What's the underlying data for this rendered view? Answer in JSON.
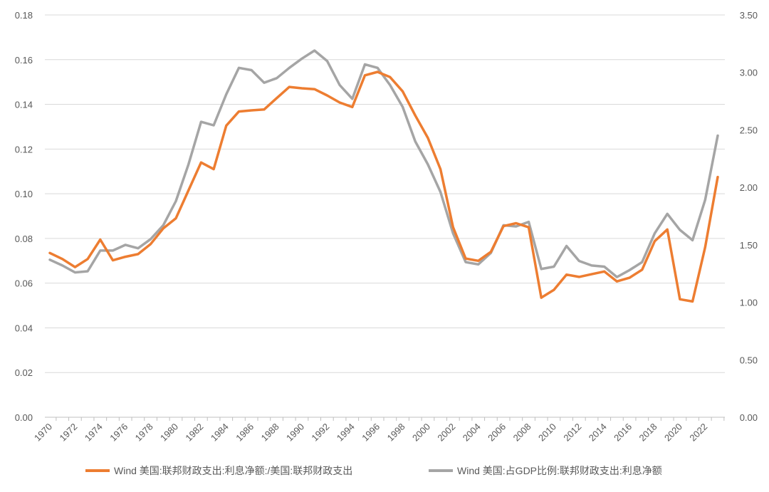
{
  "chart_data": {
    "type": "line",
    "x": [
      1970,
      1971,
      1972,
      1973,
      1974,
      1975,
      1976,
      1977,
      1978,
      1979,
      1980,
      1981,
      1982,
      1983,
      1984,
      1985,
      1986,
      1987,
      1988,
      1989,
      1990,
      1991,
      1992,
      1993,
      1994,
      1995,
      1996,
      1997,
      1998,
      1999,
      2000,
      2001,
      2002,
      2003,
      2004,
      2005,
      2006,
      2007,
      2008,
      2009,
      2010,
      2011,
      2012,
      2013,
      2014,
      2015,
      2016,
      2017,
      2018,
      2019,
      2020,
      2021,
      2022,
      2023
    ],
    "x_tick_labels": [
      "1970",
      "1972",
      "1974",
      "1976",
      "1978",
      "1980",
      "1982",
      "1984",
      "1986",
      "1988",
      "1990",
      "1992",
      "1994",
      "1996",
      "1998",
      "2000",
      "2002",
      "2004",
      "2006",
      "2008",
      "2010",
      "2012",
      "2014",
      "2016",
      "2018",
      "2020",
      "2022"
    ],
    "left_axis": {
      "ylim": [
        0,
        0.18
      ],
      "ticks": [
        "0.00",
        "0.02",
        "0.04",
        "0.06",
        "0.08",
        "0.10",
        "0.12",
        "0.14",
        "0.16",
        "0.18"
      ]
    },
    "right_axis": {
      "ylim": [
        0,
        3.5
      ],
      "ticks": [
        "0.00",
        "0.50",
        "1.00",
        "1.50",
        "2.00",
        "2.50",
        "3.00",
        "3.50"
      ]
    },
    "grid": true,
    "legend_position": "bottom",
    "series": [
      {
        "name": "Wind 美国:联邦财政支出:利息净额:/美国:联邦财政支出",
        "axis": "left",
        "color": "#ED7D31",
        "values": [
          0.0735,
          0.0708,
          0.0672,
          0.0708,
          0.0795,
          0.0702,
          0.0718,
          0.073,
          0.0775,
          0.0845,
          0.089,
          0.1015,
          0.114,
          0.111,
          0.1305,
          0.1368,
          0.1373,
          0.1377,
          0.1428,
          0.1478,
          0.1472,
          0.1468,
          0.144,
          0.1408,
          0.1388,
          0.153,
          0.1545,
          0.1522,
          0.1458,
          0.135,
          0.125,
          0.111,
          0.085,
          0.071,
          0.07,
          0.074,
          0.0855,
          0.0868,
          0.085,
          0.0535,
          0.057,
          0.0638,
          0.0628,
          0.064,
          0.0652,
          0.0608,
          0.0624,
          0.066,
          0.0788,
          0.084,
          0.0528,
          0.0518,
          0.076,
          0.1075
        ]
      },
      {
        "name": "Wind 美国:占GDP比例:联邦财政支出:利息净额",
        "axis": "right",
        "color": "#A5A5A5",
        "values": [
          1.37,
          1.32,
          1.26,
          1.27,
          1.45,
          1.45,
          1.5,
          1.47,
          1.55,
          1.67,
          1.88,
          2.2,
          2.57,
          2.54,
          2.81,
          3.04,
          3.02,
          2.91,
          2.95,
          3.04,
          3.12,
          3.19,
          3.1,
          2.89,
          2.77,
          3.07,
          3.04,
          2.89,
          2.7,
          2.4,
          2.2,
          1.96,
          1.6,
          1.35,
          1.33,
          1.43,
          1.67,
          1.66,
          1.7,
          1.29,
          1.31,
          1.49,
          1.36,
          1.32,
          1.31,
          1.22,
          1.28,
          1.35,
          1.6,
          1.77,
          1.63,
          1.54,
          1.89,
          2.45
        ]
      }
    ]
  }
}
